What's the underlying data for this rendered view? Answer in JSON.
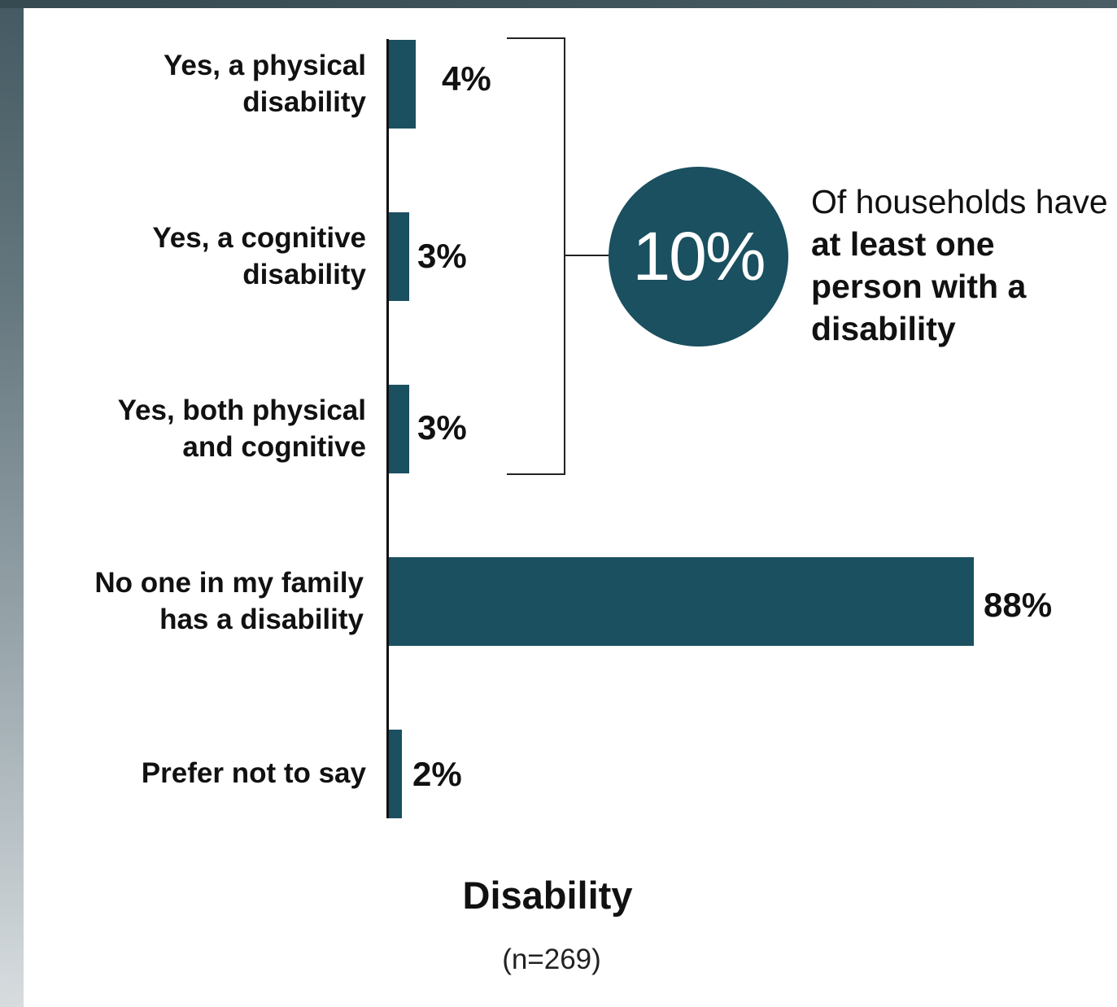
{
  "chart_data": {
    "type": "bar",
    "orientation": "horizontal",
    "categories": [
      "Yes, a physical\ndisability",
      "Yes, a cognitive\ndisability",
      "Yes, both physical\nand cognitive",
      "No one in my family\nhas a disability",
      "Prefer not to say"
    ],
    "values": [
      4,
      3,
      3,
      88,
      2
    ],
    "value_labels": [
      "4%",
      "3%",
      "3%",
      "88%",
      "2%"
    ],
    "title": "Disability",
    "subtitle": "(n=269)",
    "xlim": [
      0,
      100
    ],
    "grid": false,
    "bar_color": "#1a5060",
    "annotation": {
      "bracket_groups": [
        0,
        1,
        2
      ],
      "value": "10%",
      "text_pre": "Of households have ",
      "text_bold": "at least one person with a disability"
    }
  }
}
